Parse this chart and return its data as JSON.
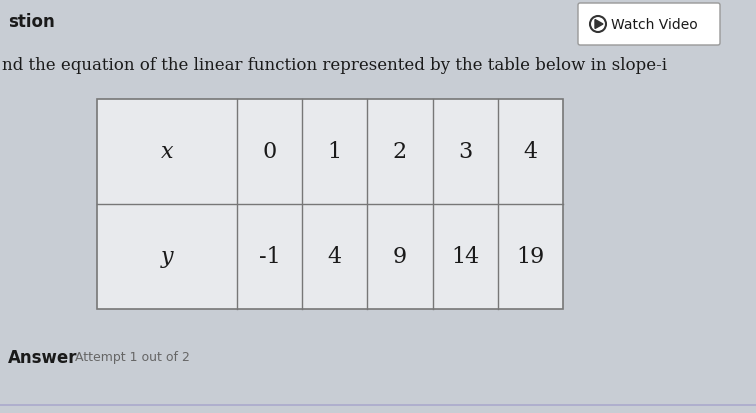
{
  "bg_color": "#c8cdd4",
  "title_text": "nd the equation of the linear function represented by the table below in slope-i",
  "question_label": "stion",
  "watch_video_text": "Watch Video",
  "answer_label": "Answer",
  "answer_sub": "Attempt 1 out of 2",
  "table_x_header": "x",
  "table_y_header": "y",
  "x_values": [
    "0",
    "1",
    "2",
    "3",
    "4"
  ],
  "y_values": [
    "-1",
    "4",
    "9",
    "14",
    "19"
  ],
  "table_bg": "#e8eaed",
  "table_border": "#777777",
  "font_color_main": "#1a1a1a",
  "font_color_attempt": "#666666",
  "watch_btn_border": "#999999",
  "fig_width": 7.56,
  "fig_height": 4.14,
  "fig_dpi": 100
}
